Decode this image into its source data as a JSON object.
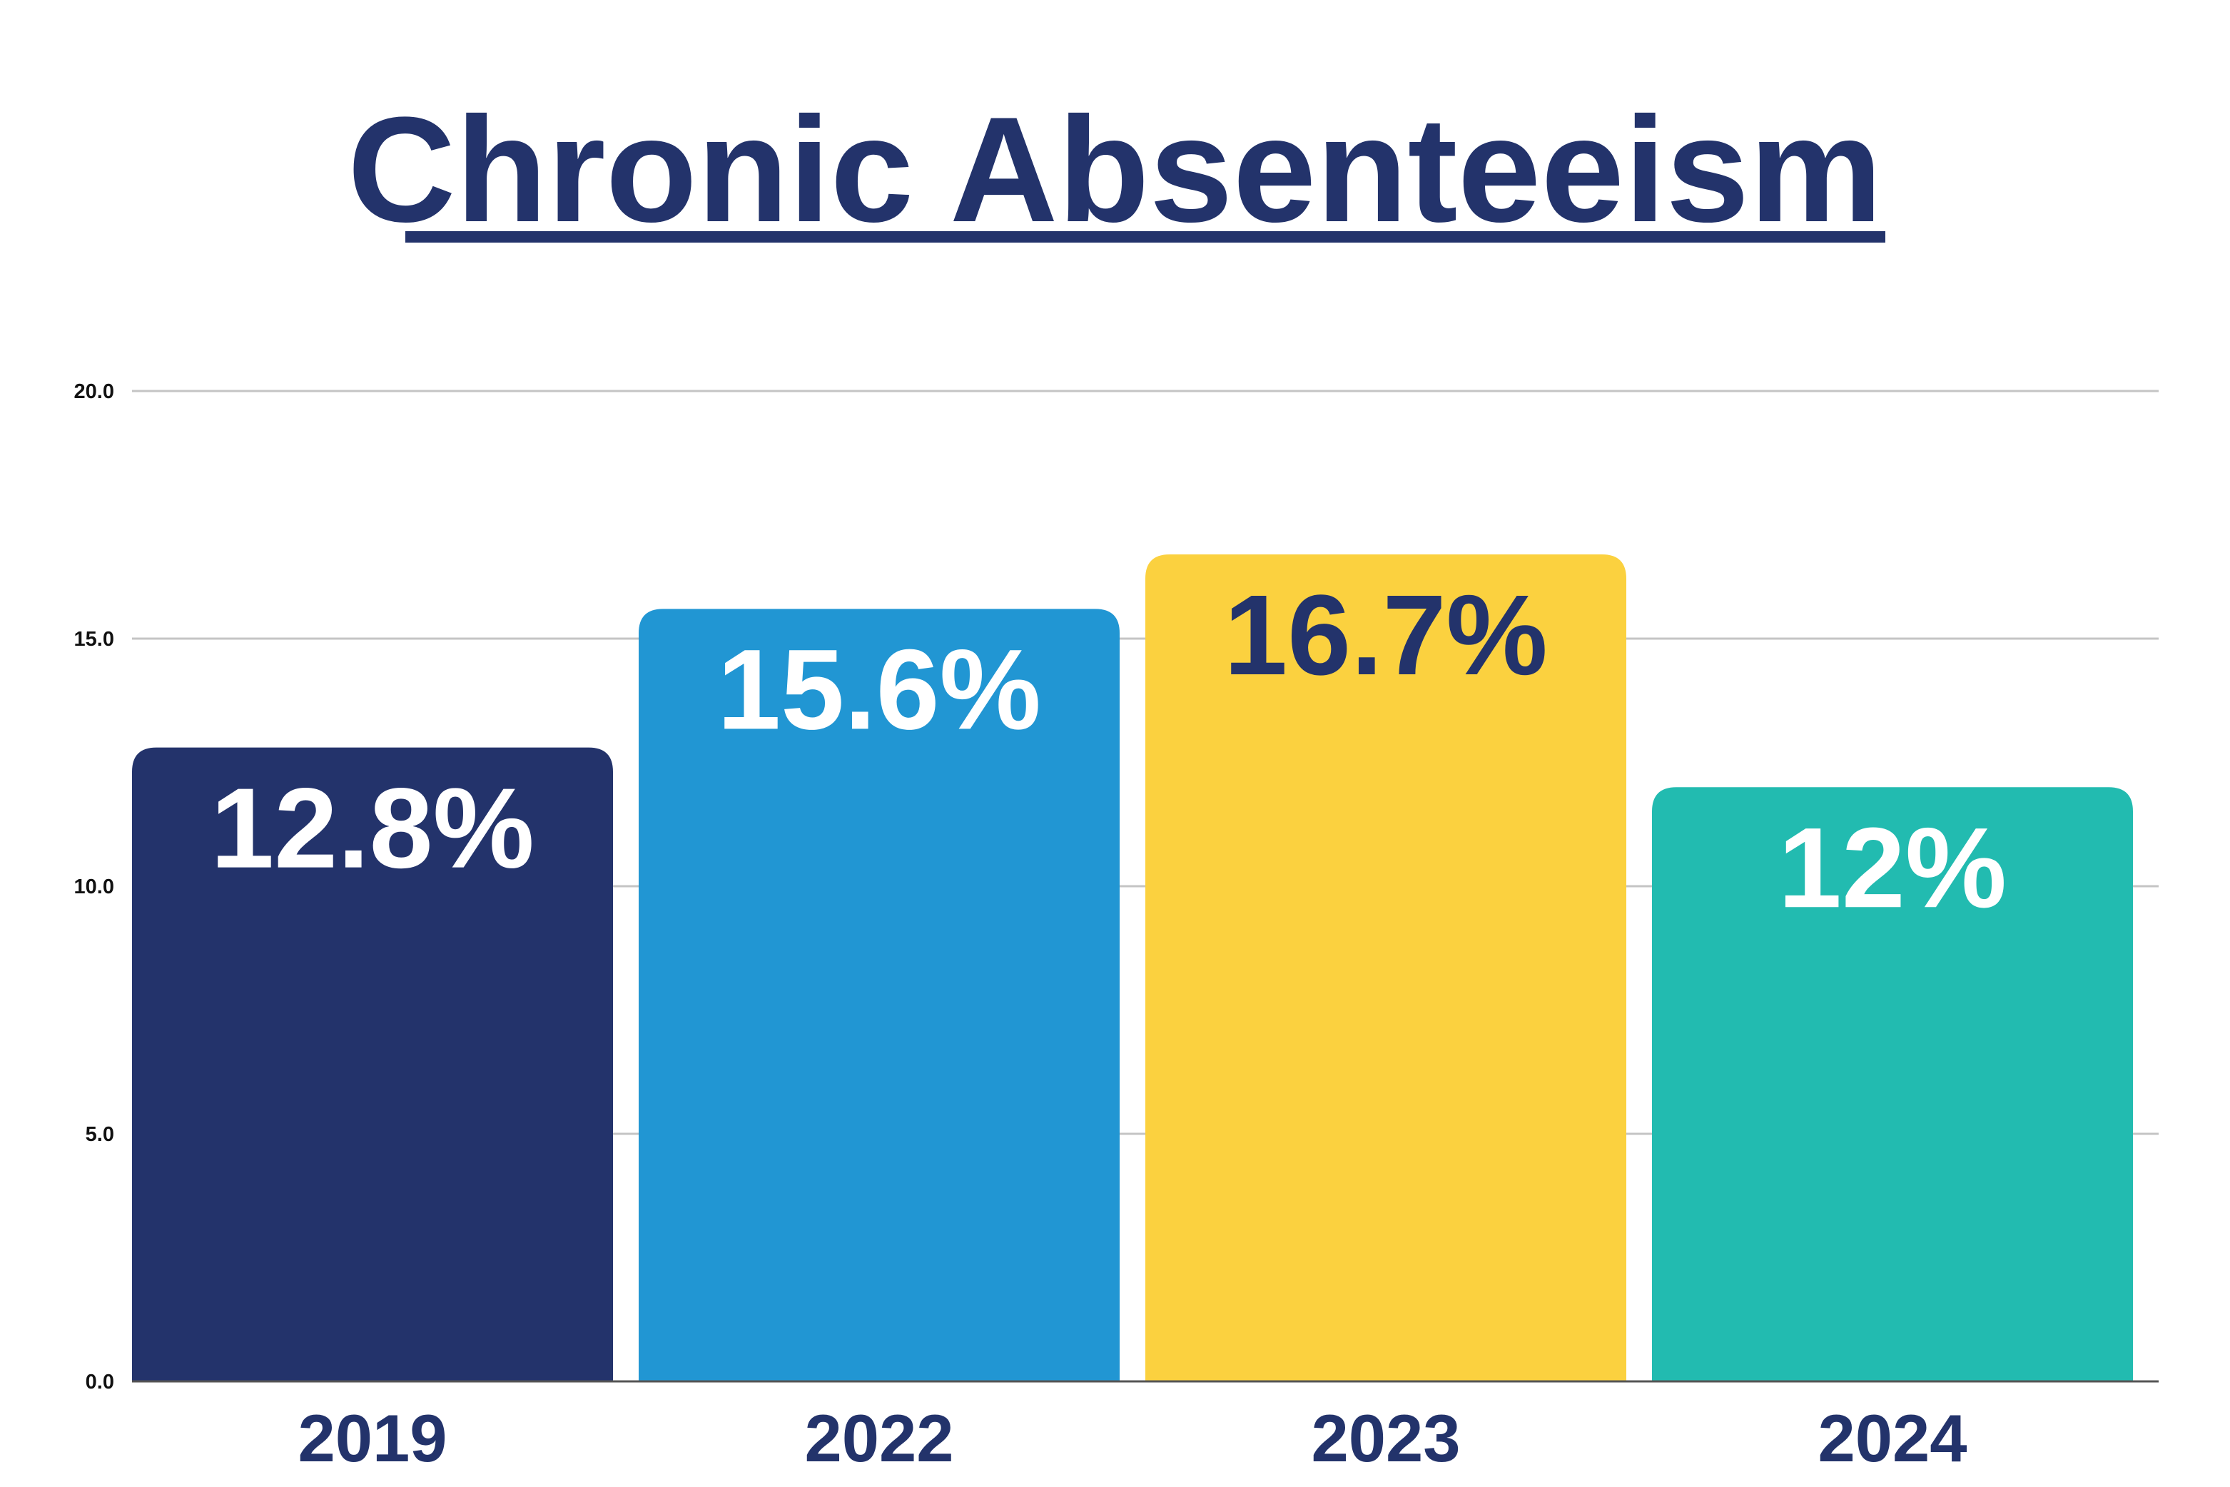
{
  "chart_data": {
    "type": "bar",
    "title": "Chronic Absenteeism",
    "categories": [
      "2019",
      "2022",
      "2023",
      "2024"
    ],
    "values": [
      12.8,
      15.6,
      16.7,
      12
    ],
    "data_labels": [
      "12.8%",
      "15.6%",
      "16.7%",
      "12%"
    ],
    "bar_colors": [
      "#23336b",
      "#2196d3",
      "#fbd13f",
      "#22bbb0"
    ],
    "label_colors": [
      "#ffffff",
      "#ffffff",
      "#23336b",
      "#ffffff"
    ],
    "ylim": [
      0,
      20
    ],
    "yticks": [
      0,
      5,
      10,
      15,
      20
    ],
    "ytick_labels": [
      "0.0",
      "5.0",
      "10.0",
      "15.0",
      "20.0"
    ],
    "xlabel": "",
    "ylabel": "",
    "grid": true,
    "legend": "none"
  }
}
